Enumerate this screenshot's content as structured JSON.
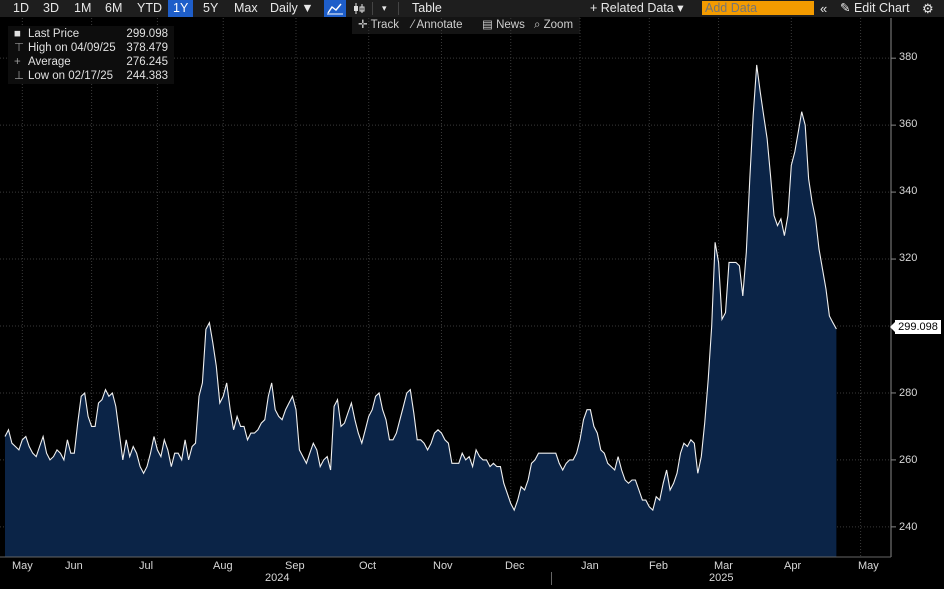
{
  "toolbar": {
    "periods": [
      "1D",
      "3D",
      "1M",
      "6M",
      "YTD",
      "1Y",
      "5Y",
      "Max"
    ],
    "selected_period": "1Y",
    "frequency": "Daily ▼",
    "table_label": "Table",
    "related_data": "+ Related Data ▾",
    "add_data_placeholder": "Add Data",
    "edit_chart": "Edit Chart"
  },
  "tools": {
    "track": "Track",
    "annotate": "Annotate",
    "news": "News",
    "zoom": "Zoom"
  },
  "legend": {
    "last_price_label": "Last Price",
    "last_price_value": "299.098",
    "high_label": "High on 04/09/25",
    "high_value": "378.479",
    "average_label": "Average",
    "average_value": "276.245",
    "low_label": "Low on 02/17/25",
    "low_value": "244.383"
  },
  "price_tag": "299.098",
  "colors": {
    "fill": "#0b2447",
    "line": "#f0f0f0",
    "accent": "#1e5ec9",
    "add_data": "#f39b00"
  },
  "chart_data": {
    "type": "area",
    "yticks": [
      "380",
      "360",
      "340",
      "320",
      "300",
      "280",
      "260",
      "240"
    ],
    "ylim": [
      231,
      392
    ],
    "x_tick_labels": [
      "May",
      "Jun",
      "Jul",
      "Aug",
      "Sep",
      "Oct",
      "Nov",
      "Dec",
      "Jan",
      "Feb",
      "Mar",
      "Apr",
      "May"
    ],
    "year_labels": [
      "2024",
      "2025"
    ],
    "x_index_range": [
      0,
      250
    ],
    "x_month_index": [
      5,
      25,
      44,
      63,
      84,
      105,
      126,
      146,
      166,
      186,
      206,
      227,
      247
    ],
    "series": [
      {
        "values": [
          267,
          269,
          265,
          264,
          263,
          266,
          267,
          264,
          262,
          261,
          264,
          267,
          262,
          260,
          261,
          263,
          262,
          260,
          266,
          262,
          262,
          271,
          279,
          280,
          273,
          270,
          270,
          277,
          278,
          281,
          279,
          280,
          276,
          268,
          260,
          266,
          261,
          264,
          262,
          258,
          256,
          258,
          262,
          267,
          263,
          261,
          266,
          263,
          258,
          262,
          262,
          260,
          266,
          260,
          264,
          265,
          279,
          283,
          299,
          301,
          295,
          288,
          277,
          279,
          283,
          275,
          269,
          273,
          270,
          270,
          266,
          268,
          268,
          269,
          271,
          272,
          279,
          283,
          275,
          273,
          272,
          275,
          277,
          279,
          275,
          263,
          261,
          259,
          262,
          265,
          263,
          258,
          260,
          261,
          257,
          276,
          278,
          270,
          271,
          274,
          277,
          272,
          268,
          265,
          269,
          273,
          275,
          279,
          280,
          275,
          272,
          266,
          266,
          268,
          272,
          276,
          280,
          281,
          274,
          266,
          266,
          265,
          263,
          265,
          268,
          269,
          268,
          266,
          265,
          259,
          259,
          259,
          262,
          260,
          261,
          258,
          263,
          261,
          260,
          260,
          258,
          259,
          258,
          258,
          253,
          250,
          247,
          245,
          248,
          252,
          251,
          254,
          259,
          260,
          262,
          262,
          262,
          262,
          262,
          262,
          259,
          257,
          259,
          260,
          260,
          262,
          266,
          272,
          275,
          275,
          270,
          268,
          263,
          262,
          259,
          258,
          257,
          261,
          257,
          254,
          253,
          254,
          254,
          251,
          248,
          248,
          246,
          245,
          249,
          248,
          253,
          257,
          251,
          253,
          256,
          262,
          265,
          264,
          266,
          265,
          256,
          261,
          271,
          284,
          300,
          325,
          319,
          302,
          304,
          319,
          319,
          319,
          318,
          309,
          322,
          344,
          363,
          378,
          370,
          363,
          356,
          345,
          333,
          330,
          332,
          327,
          333,
          348,
          352,
          358,
          364,
          360,
          344,
          337,
          332,
          323,
          317,
          311,
          303,
          301,
          299.098
        ]
      }
    ]
  }
}
